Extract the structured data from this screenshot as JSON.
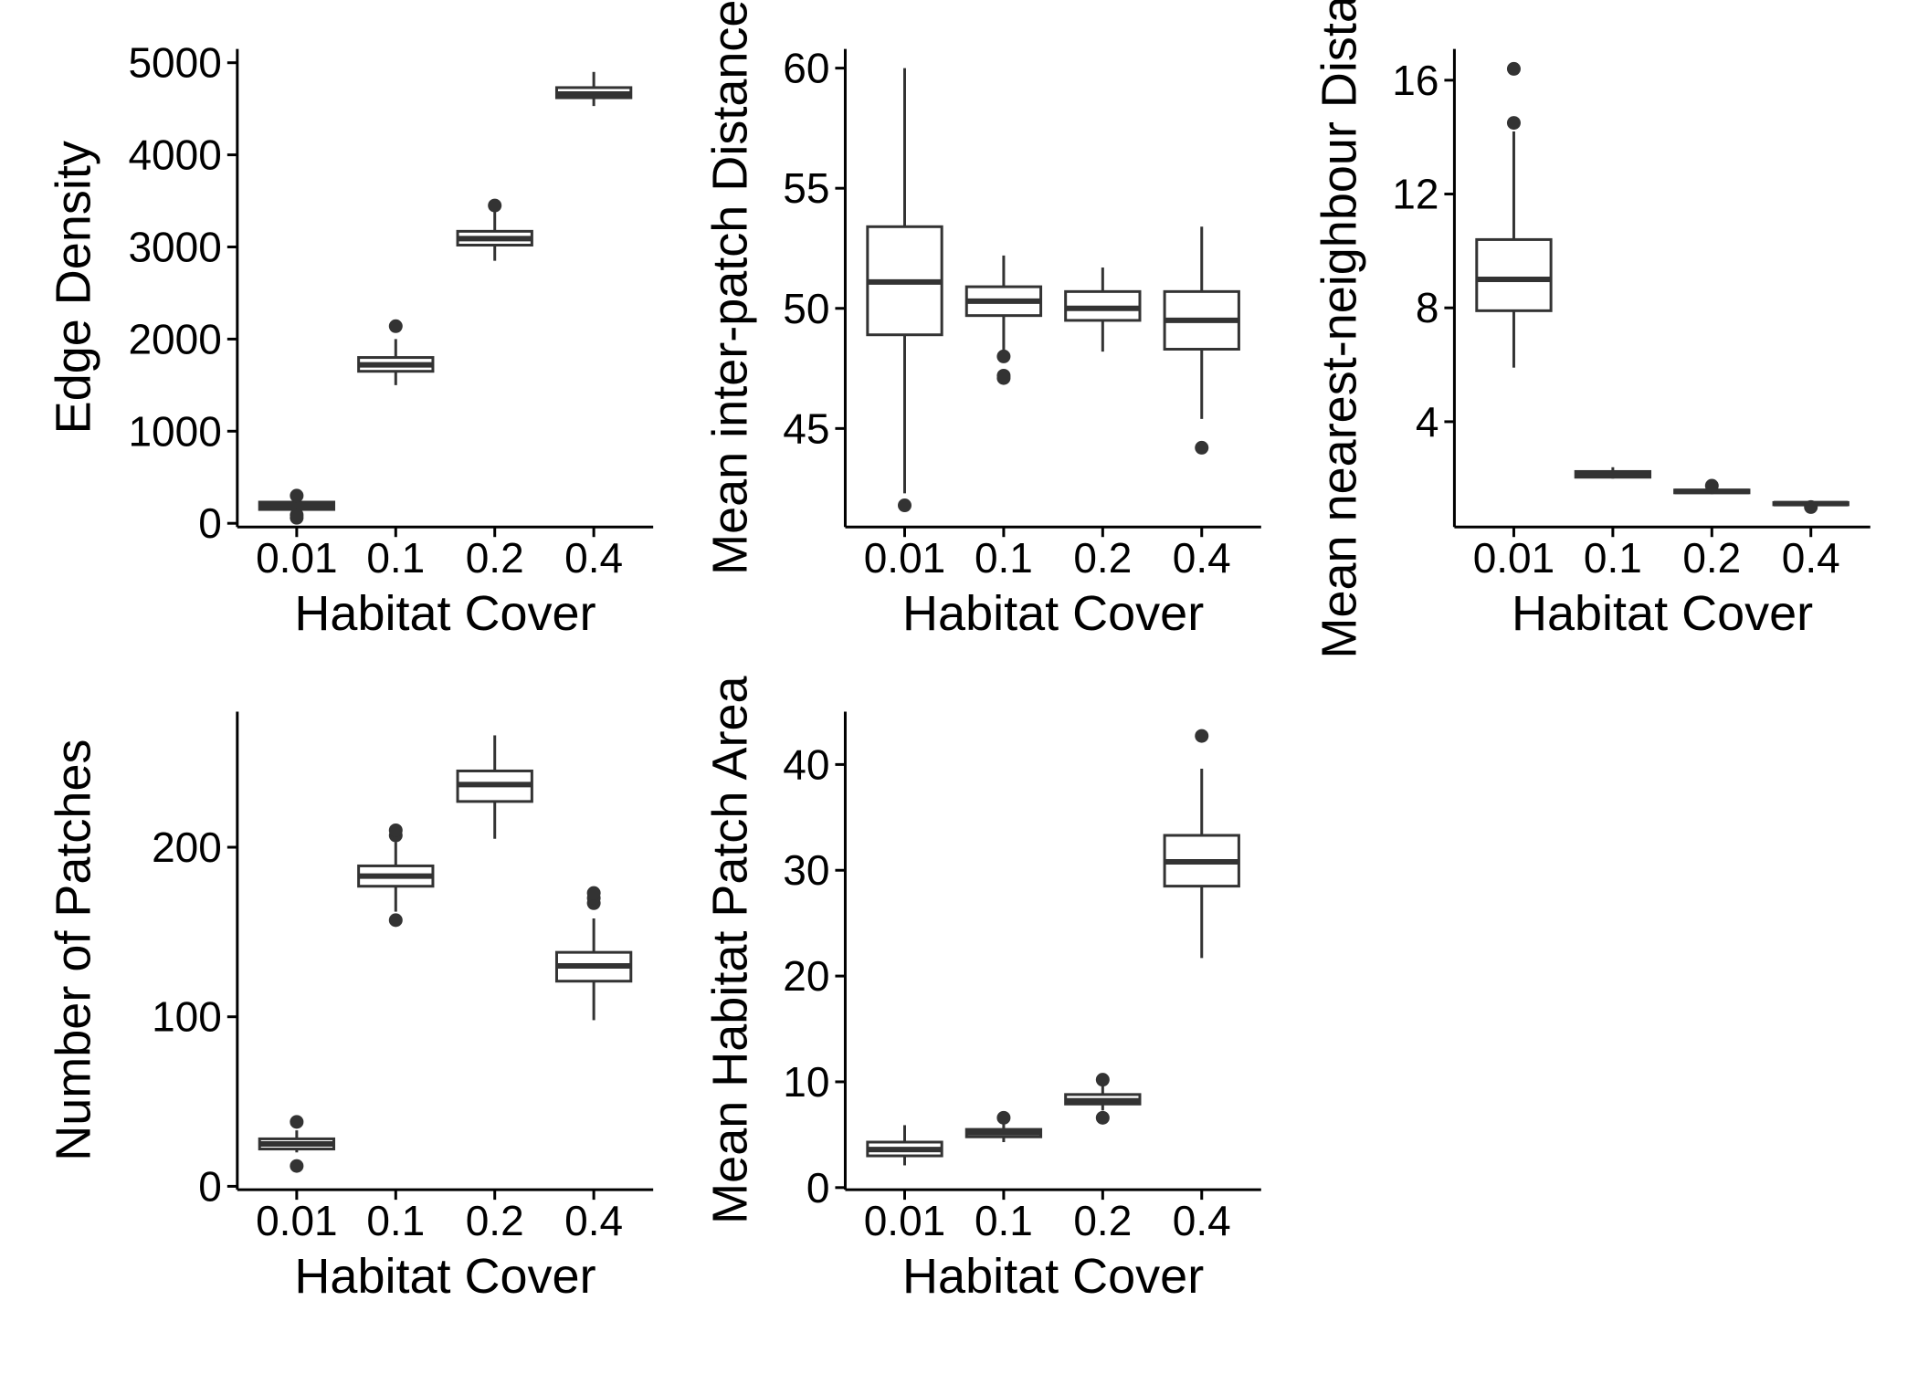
{
  "chart_data": [
    {
      "type": "box",
      "xlabel": "Habitat Cover",
      "ylabel": "Edge Density",
      "categories": [
        "0.01",
        "0.1",
        "0.2",
        "0.4"
      ],
      "ylim": [
        -40,
        5150
      ],
      "yticks": [
        0,
        1000,
        2000,
        3000,
        4000,
        5000
      ],
      "boxes": [
        {
          "min": 120,
          "q1": 150,
          "median": 190,
          "q3": 230,
          "max": 260,
          "outliers": [
            60,
            90,
            300
          ]
        },
        {
          "min": 1500,
          "q1": 1650,
          "median": 1720,
          "q3": 1800,
          "max": 2000,
          "outliers": [
            2140
          ]
        },
        {
          "min": 2850,
          "q1": 3020,
          "median": 3090,
          "q3": 3170,
          "max": 3380,
          "outliers": [
            3450
          ]
        },
        {
          "min": 4530,
          "q1": 4620,
          "median": 4660,
          "q3": 4730,
          "max": 4900,
          "outliers": []
        }
      ]
    },
    {
      "type": "box",
      "xlabel": "Habitat Cover",
      "ylabel": "Mean inter-patch Distance",
      "categories": [
        "0.01",
        "0.1",
        "0.2",
        "0.4"
      ],
      "ylim": [
        40.9,
        60.8
      ],
      "yticks": [
        45,
        50,
        55,
        60
      ],
      "boxes": [
        {
          "min": 42.3,
          "q1": 48.9,
          "median": 51.1,
          "q3": 53.4,
          "max": 60.0,
          "outliers": [
            41.8
          ]
        },
        {
          "min": 48.1,
          "q1": 49.7,
          "median": 50.3,
          "q3": 50.9,
          "max": 52.2,
          "outliers": [
            47.1,
            47.2,
            48.0
          ]
        },
        {
          "min": 48.2,
          "q1": 49.5,
          "median": 50.0,
          "q3": 50.7,
          "max": 51.7,
          "outliers": []
        },
        {
          "min": 45.4,
          "q1": 48.3,
          "median": 49.5,
          "q3": 50.7,
          "max": 53.4,
          "outliers": [
            44.2
          ]
        }
      ]
    },
    {
      "type": "box",
      "xlabel": "Habitat Cover",
      "ylabel": "Mean nearest-neighbour Distance",
      "categories": [
        "0.01",
        "0.1",
        "0.2",
        "0.4"
      ],
      "ylim": [
        0.3,
        17.1
      ],
      "yticks": [
        4,
        8,
        12,
        16
      ],
      "boxes": [
        {
          "min": 5.9,
          "q1": 7.9,
          "median": 9.0,
          "q3": 10.4,
          "max": 14.2,
          "outliers": [
            14.5,
            16.4
          ]
        },
        {
          "min": 2.0,
          "q1": 2.05,
          "median": 2.15,
          "q3": 2.25,
          "max": 2.4,
          "outliers": []
        },
        {
          "min": 1.45,
          "q1": 1.5,
          "median": 1.55,
          "q3": 1.6,
          "max": 1.7,
          "outliers": [
            1.75
          ]
        },
        {
          "min": 1.05,
          "q1": 1.08,
          "median": 1.12,
          "q3": 1.16,
          "max": 1.2,
          "outliers": [
            1.0
          ]
        }
      ]
    },
    {
      "type": "box",
      "xlabel": "Habitat Cover",
      "ylabel": "Number of Patches",
      "categories": [
        "0.01",
        "0.1",
        "0.2",
        "0.4"
      ],
      "ylim": [
        -2,
        280
      ],
      "yticks": [
        0,
        100,
        200
      ],
      "boxes": [
        {
          "min": 20,
          "q1": 22,
          "median": 25,
          "q3": 28,
          "max": 33,
          "outliers": [
            12,
            38
          ]
        },
        {
          "min": 162,
          "q1": 177,
          "median": 183,
          "q3": 189,
          "max": 203,
          "outliers": [
            157,
            207,
            210
          ]
        },
        {
          "min": 205,
          "q1": 227,
          "median": 237,
          "q3": 245,
          "max": 266,
          "outliers": []
        },
        {
          "min": 98,
          "q1": 121,
          "median": 130,
          "q3": 138,
          "max": 158,
          "outliers": [
            167,
            170,
            173
          ]
        }
      ]
    },
    {
      "type": "box",
      "xlabel": "Habitat Cover",
      "ylabel": "Mean Habitat Patch Area",
      "categories": [
        "0.01",
        "0.1",
        "0.2",
        "0.4"
      ],
      "ylim": [
        -0.2,
        45
      ],
      "yticks": [
        0,
        10,
        20,
        30,
        40
      ],
      "boxes": [
        {
          "min": 2.1,
          "q1": 3.0,
          "median": 3.6,
          "q3": 4.3,
          "max": 5.9,
          "outliers": []
        },
        {
          "min": 4.3,
          "q1": 4.8,
          "median": 5.2,
          "q3": 5.5,
          "max": 6.0,
          "outliers": [
            6.6
          ]
        },
        {
          "min": 7.3,
          "q1": 7.9,
          "median": 8.2,
          "q3": 8.8,
          "max": 9.6,
          "outliers": [
            6.6,
            10.2
          ]
        },
        {
          "min": 21.7,
          "q1": 28.5,
          "median": 30.8,
          "q3": 33.3,
          "max": 39.6,
          "outliers": [
            42.7
          ]
        }
      ]
    }
  ]
}
